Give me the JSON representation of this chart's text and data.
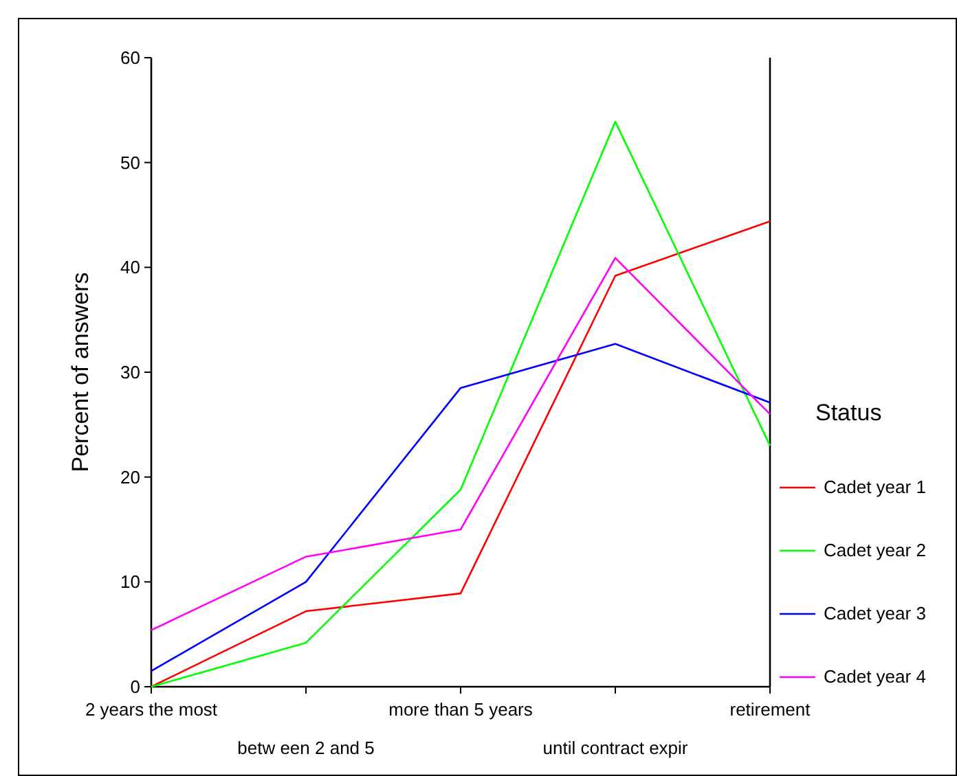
{
  "chart_data": {
    "type": "line",
    "ylabel": "Percent of answers",
    "legend_title": "Status",
    "legend": "right",
    "grid": false,
    "marker": "none",
    "line_style": "solid",
    "categories": [
      "2 years the most",
      "betw een 2 and 5",
      "more than 5 years",
      "until contract expir",
      "retirement"
    ],
    "ylim": [
      0,
      60
    ],
    "yticks": [
      0,
      10,
      20,
      30,
      40,
      50,
      60
    ],
    "series": [
      {
        "name": "Cadet year 1",
        "color": "#ff0000",
        "values": [
          0,
          7.2,
          8.9,
          39.2,
          44.4
        ]
      },
      {
        "name": "Cadet year 2",
        "color": "#00ff00",
        "values": [
          0,
          4.2,
          18.8,
          53.9,
          23.0
        ]
      },
      {
        "name": "Cadet year 3",
        "color": "#0000ff",
        "values": [
          1.5,
          10,
          28.5,
          32.7,
          27.1
        ]
      },
      {
        "name": "Cadet year 4",
        "color": "#ff00ff",
        "values": [
          5.4,
          12.4,
          15.0,
          40.9,
          26.0
        ]
      }
    ]
  }
}
